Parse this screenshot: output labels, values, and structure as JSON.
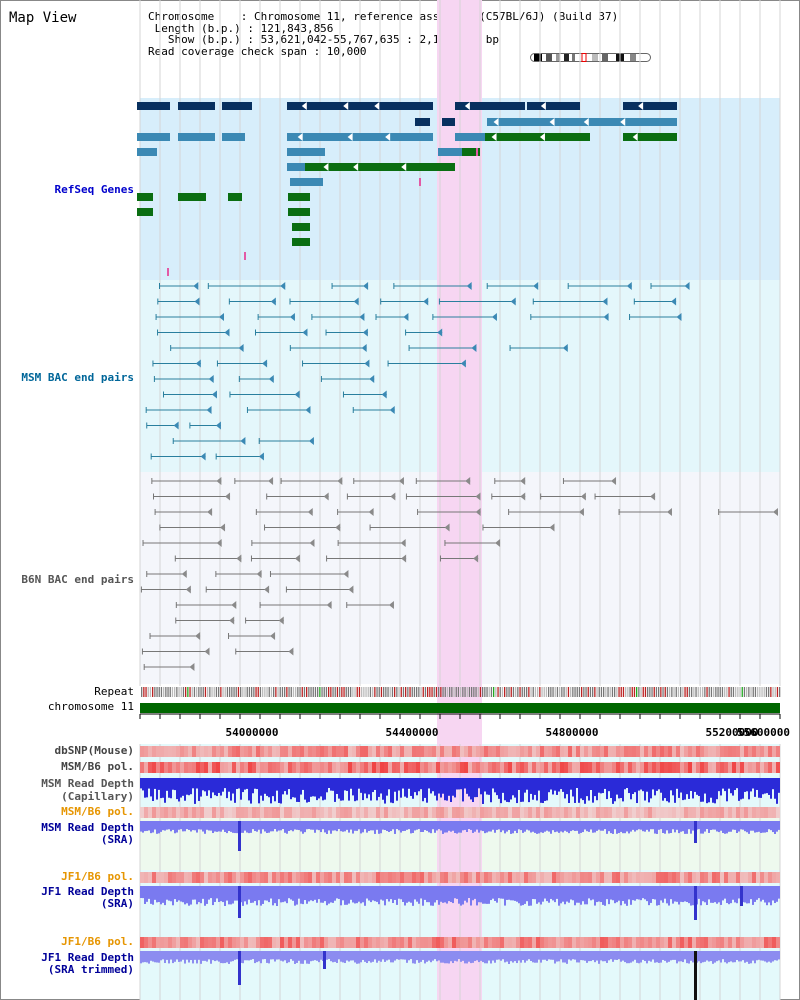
{
  "title": "Map View",
  "info": {
    "chromosome_line": "Chromosome    : Chromosome 11, reference assembly (C57BL/6J) (Build 37)",
    "length_line": " Length (b.p.) : 121,843,856",
    "show_line": "   Show (b.p.) : 53,621,042-55,767,635 : 2,146,594 bp",
    "span_line": "Read coverage check span : 10,000"
  },
  "labels": {
    "refseq": "RefSeq Genes",
    "msm_bac": "MSM BAC end pairs",
    "b6n_bac": "B6N BAC end pairs",
    "repeat": "Repeat",
    "chromosome": "chromosome 11",
    "dbsnp": "dbSNP(Mouse)",
    "msm_b6_pol_1": "MSM/B6 pol.",
    "msm_read_depth_cap": "MSM Read Depth",
    "capillary": "(Capillary)",
    "msm_b6_pol_2": "MSM/B6 pol.",
    "msm_read_depth_sra": "MSM Read Depth",
    "sra_1": "(SRA)",
    "jf1_b6_pol_1": "JF1/B6 pol.",
    "jf1_read_depth_sra": "JF1 Read Depth",
    "sra_2": "(SRA)",
    "jf1_b6_pol_2": "JF1/B6 pol.",
    "jf1_read_depth_trim": "JF1 Read Depth",
    "sra_trimmed": "(SRA trimmed)"
  },
  "axis": {
    "ticks": [
      "54000000",
      "54400000",
      "54800000",
      "55200000",
      "55600000"
    ]
  },
  "colors": {
    "refseq_label": "#0000cc",
    "msm_label": "#006699",
    "b6n_label": "#555555",
    "pol_label": "#e69500",
    "depth_label": "#000099",
    "highlight": "#f7d6f2",
    "refseq_bg": "#d7eefb",
    "msm_bg": "#e4f7fb",
    "b6n_bg": "#f4f6fb",
    "gene_dark": "#08305f",
    "gene_mid": "#3b89b4",
    "gene_green": "#0a6e12",
    "chrom_bar": "#006600"
  }
}
